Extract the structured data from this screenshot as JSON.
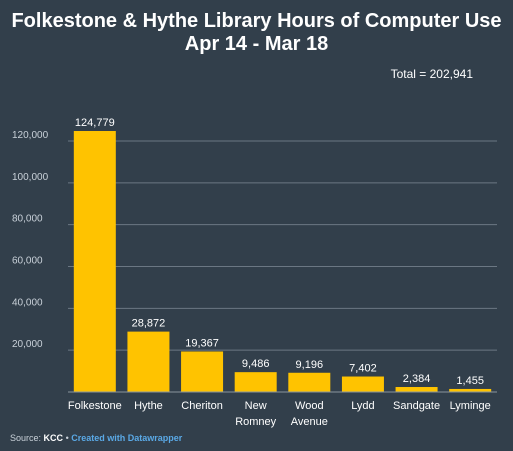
{
  "chart_data": {
    "type": "bar",
    "title": "Folkestone & Hythe Library Hours of Computer Use",
    "subtitle": "Apr 14 - Mar 18",
    "total_label": "Total = 202,941",
    "categories": [
      "Folkestone",
      "Hythe",
      "Cheriton",
      "New Romney",
      "Wood Avenue",
      "Lydd",
      "Sandgate",
      "Lyminge"
    ],
    "category_lines": [
      [
        "Folkestone"
      ],
      [
        "Hythe"
      ],
      [
        "Cheriton"
      ],
      [
        "New",
        "Romney"
      ],
      [
        "Wood",
        "Avenue"
      ],
      [
        "Lydd"
      ],
      [
        "Sandgate"
      ],
      [
        "Lyminge"
      ]
    ],
    "values": [
      124779,
      28872,
      19367,
      9486,
      9196,
      7402,
      2384,
      1455
    ],
    "value_labels": [
      "124,779",
      "28,872",
      "19,367",
      "9,486",
      "9,196",
      "7,402",
      "2,384",
      "1,455"
    ],
    "y_ticks": [
      20000,
      40000,
      60000,
      80000,
      100000,
      120000
    ],
    "y_tick_labels": [
      "20,000",
      "40,000",
      "60,000",
      "80,000",
      "100,000",
      "120,000"
    ],
    "ylim": [
      0,
      120000
    ],
    "grid": true,
    "colors": {
      "bar": "#ffc300",
      "background": "#323f4b",
      "grid": "#6b7783",
      "text": "#ffffff"
    }
  },
  "source": {
    "prefix": "Source:",
    "name": "KCC",
    "separator": "•",
    "credit": "Created with Datawrapper"
  }
}
